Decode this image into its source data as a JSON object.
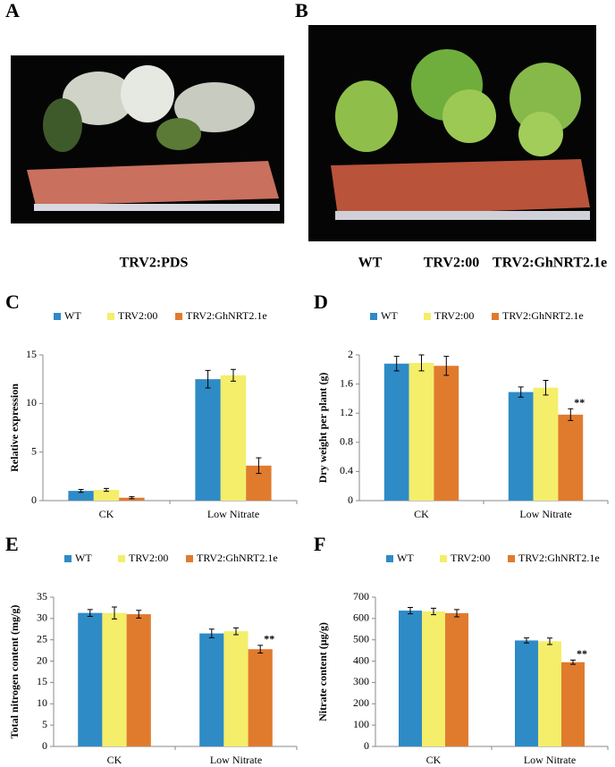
{
  "photo_panels": [
    {
      "letter": "A",
      "caption": "TRV2:PDS"
    },
    {
      "letter": "B",
      "captions": [
        "WT",
        "TRV2:00",
        "TRV2:GhNRT2.1e"
      ]
    }
  ],
  "chart_data": [
    {
      "type": "bar",
      "panel": "C",
      "y_label": "Relative expression",
      "categories": [
        "CK",
        "Low Nitrate"
      ],
      "ylim": [
        0,
        15
      ],
      "yticks": [
        0,
        5,
        10,
        15
      ],
      "series": [
        {
          "name": "WT",
          "color": "#2e8bc6",
          "values": [
            1.0,
            12.5
          ],
          "errors": [
            0.15,
            0.9
          ]
        },
        {
          "name": "TRV2:00",
          "color": "#f4ee6a",
          "values": [
            1.1,
            12.9
          ],
          "errors": [
            0.15,
            0.6
          ]
        },
        {
          "name": "TRV2:GhNRT2.1e",
          "color": "#e07b2e",
          "values": [
            0.3,
            3.6
          ],
          "errors": [
            0.1,
            0.8
          ]
        }
      ]
    },
    {
      "type": "bar",
      "panel": "D",
      "y_label": "Dry weight per plant (g)",
      "categories": [
        "CK",
        "Low Nitrate"
      ],
      "ylim": [
        0,
        2
      ],
      "yticks": [
        0,
        0.4,
        0.8,
        1.2,
        1.6,
        2
      ],
      "series": [
        {
          "name": "WT",
          "color": "#2e8bc6",
          "values": [
            1.88,
            1.49
          ],
          "errors": [
            0.1,
            0.07
          ]
        },
        {
          "name": "TRV2:00",
          "color": "#f4ee6a",
          "values": [
            1.89,
            1.55
          ],
          "errors": [
            0.11,
            0.1
          ]
        },
        {
          "name": "TRV2:GhNRT2.1e",
          "color": "#e07b2e",
          "values": [
            1.85,
            1.18
          ],
          "errors": [
            0.13,
            0.08
          ],
          "significance": [
            null,
            "**"
          ]
        }
      ]
    },
    {
      "type": "bar",
      "panel": "E",
      "y_label": "Total nitrogen content (mg/g)",
      "categories": [
        "CK",
        "Low Nitrate"
      ],
      "ylim": [
        0,
        35
      ],
      "yticks": [
        0,
        5,
        10,
        15,
        20,
        25,
        30,
        35
      ],
      "series": [
        {
          "name": "WT",
          "color": "#2e8bc6",
          "values": [
            31.3,
            26.5
          ],
          "errors": [
            0.8,
            1.0
          ]
        },
        {
          "name": "TRV2:00",
          "color": "#f4ee6a",
          "values": [
            31.3,
            27.0
          ],
          "errors": [
            1.4,
            0.8
          ]
        },
        {
          "name": "TRV2:GhNRT2.1e",
          "color": "#e07b2e",
          "values": [
            31.0,
            22.8
          ],
          "errors": [
            0.9,
            0.9
          ],
          "significance": [
            null,
            "**"
          ]
        }
      ]
    },
    {
      "type": "bar",
      "panel": "F",
      "y_label": "Nitrate content (μg/g)",
      "categories": [
        "CK",
        "Low Nitrate"
      ],
      "ylim": [
        0,
        700
      ],
      "yticks": [
        0,
        100,
        200,
        300,
        400,
        500,
        600,
        700
      ],
      "series": [
        {
          "name": "WT",
          "color": "#2e8bc6",
          "values": [
            637,
            497
          ],
          "errors": [
            15,
            12
          ]
        },
        {
          "name": "TRV2:00",
          "color": "#f4ee6a",
          "values": [
            633,
            493
          ],
          "errors": [
            15,
            15
          ]
        },
        {
          "name": "TRV2:GhNRT2.1e",
          "color": "#e07b2e",
          "values": [
            625,
            395
          ],
          "errors": [
            17,
            10
          ],
          "significance": [
            null,
            "**"
          ]
        }
      ]
    }
  ]
}
